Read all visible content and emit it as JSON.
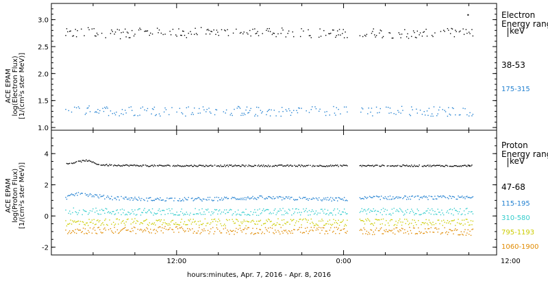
{
  "x_axis_label": "hours:minutes, Apr.  7, 2016 - Apr.  8, 2016",
  "panels": [
    {
      "ylabel_lines": [
        "ACE EPAM",
        "log(Electron Flux)",
        "[1/(cm²s ster MeV)]"
      ],
      "legend_title_lines": [
        "Electron",
        "Energy range"
      ],
      "legend_unit": "keV"
    },
    {
      "ylabel_lines": [
        "ACE EPAM",
        "log(Proton Flux)",
        "[1/(cm²s ster MeV)]"
      ],
      "legend_title_lines": [
        "Proton",
        "Energy range"
      ],
      "legend_unit": "keV"
    }
  ],
  "chart_data": [
    {
      "type": "scatter",
      "xlabel": "hours:minutes, Apr.  7, 2016 - Apr.  8, 2016",
      "ylabel": "log(Electron Flux)",
      "xlim_hours": [
        3,
        35
      ],
      "x_ticks": [
        "12:00",
        "0:00",
        "12:00"
      ],
      "x_tick_hours": [
        12,
        24,
        36
      ],
      "ylim": [
        0.95,
        3.3
      ],
      "y_ticks": [
        "1.0",
        "1.5",
        "2.0",
        "2.5",
        "3.0"
      ],
      "data_gap_hours": [
        24.3,
        25.1
      ],
      "series": [
        {
          "name": "38-53",
          "color": "#000000",
          "values": [
            {
              "x_hours": 4.0,
              "y": 2.75
            },
            {
              "x_hours": 6.0,
              "y": 2.78
            },
            {
              "x_hours": 8.0,
              "y": 2.74
            },
            {
              "x_hours": 10.0,
              "y": 2.77
            },
            {
              "x_hours": 12.0,
              "y": 2.75
            },
            {
              "x_hours": 14.0,
              "y": 2.78
            },
            {
              "x_hours": 16.0,
              "y": 2.76
            },
            {
              "x_hours": 18.0,
              "y": 2.75
            },
            {
              "x_hours": 20.0,
              "y": 2.77
            },
            {
              "x_hours": 22.0,
              "y": 2.76
            },
            {
              "x_hours": 24.0,
              "y": 2.74
            },
            {
              "x_hours": 26.0,
              "y": 2.76
            },
            {
              "x_hours": 28.0,
              "y": 2.75
            },
            {
              "x_hours": 30.0,
              "y": 2.74
            },
            {
              "x_hours": 32.0,
              "y": 2.76
            },
            {
              "x_hours": 33.0,
              "y": 2.75
            },
            {
              "x_hours": 32.9,
              "y": 3.1
            }
          ]
        },
        {
          "name": "175-315",
          "color": "#1f7fd0",
          "values": [
            {
              "x_hours": 4.0,
              "y": 1.3
            },
            {
              "x_hours": 6.0,
              "y": 1.33
            },
            {
              "x_hours": 8.0,
              "y": 1.31
            },
            {
              "x_hours": 10.0,
              "y": 1.32
            },
            {
              "x_hours": 12.0,
              "y": 1.3
            },
            {
              "x_hours": 14.0,
              "y": 1.31
            },
            {
              "x_hours": 16.0,
              "y": 1.32
            },
            {
              "x_hours": 18.0,
              "y": 1.3
            },
            {
              "x_hours": 20.0,
              "y": 1.31
            },
            {
              "x_hours": 22.0,
              "y": 1.32
            },
            {
              "x_hours": 24.0,
              "y": 1.31
            },
            {
              "x_hours": 26.0,
              "y": 1.3
            },
            {
              "x_hours": 28.0,
              "y": 1.32
            },
            {
              "x_hours": 30.0,
              "y": 1.31
            },
            {
              "x_hours": 32.0,
              "y": 1.3
            },
            {
              "x_hours": 33.0,
              "y": 1.31
            }
          ]
        }
      ]
    },
    {
      "type": "scatter",
      "xlabel": "hours:minutes, Apr.  7, 2016 - Apr.  8, 2016",
      "ylabel": "log(Proton Flux)",
      "xlim_hours": [
        3,
        35
      ],
      "x_ticks": [
        "12:00",
        "0:00",
        "12:00"
      ],
      "x_tick_hours": [
        12,
        24,
        36
      ],
      "ylim": [
        -2.5,
        5.5
      ],
      "y_ticks": [
        "-2",
        "0",
        "2",
        "4"
      ],
      "data_gap_hours": [
        24.3,
        25.1
      ],
      "series": [
        {
          "name": "47-68",
          "color": "#000000",
          "values": [
            {
              "x_hours": 4.0,
              "y": 3.35
            },
            {
              "x_hours": 5.5,
              "y": 3.6
            },
            {
              "x_hours": 6.5,
              "y": 3.3
            },
            {
              "x_hours": 10.0,
              "y": 3.25
            },
            {
              "x_hours": 14.0,
              "y": 3.25
            },
            {
              "x_hours": 18.0,
              "y": 3.25
            },
            {
              "x_hours": 22.0,
              "y": 3.25
            },
            {
              "x_hours": 24.0,
              "y": 3.25
            },
            {
              "x_hours": 26.0,
              "y": 3.25
            },
            {
              "x_hours": 30.0,
              "y": 3.25
            },
            {
              "x_hours": 33.0,
              "y": 3.25
            }
          ]
        },
        {
          "name": "115-195",
          "color": "#1f7fd0",
          "values": [
            {
              "x_hours": 4.0,
              "y": 1.2
            },
            {
              "x_hours": 5.0,
              "y": 1.5
            },
            {
              "x_hours": 7.0,
              "y": 1.2
            },
            {
              "x_hours": 10.0,
              "y": 1.1
            },
            {
              "x_hours": 14.0,
              "y": 1.1
            },
            {
              "x_hours": 18.0,
              "y": 1.2
            },
            {
              "x_hours": 22.0,
              "y": 1.1
            },
            {
              "x_hours": 24.0,
              "y": 1.1
            },
            {
              "x_hours": 26.0,
              "y": 1.2
            },
            {
              "x_hours": 30.0,
              "y": 1.2
            },
            {
              "x_hours": 33.0,
              "y": 1.2
            }
          ]
        },
        {
          "name": "310-580",
          "color": "#33cccc",
          "values": [
            {
              "x_hours": 4.0,
              "y": 0.35
            },
            {
              "x_hours": 8.0,
              "y": 0.3
            },
            {
              "x_hours": 12.0,
              "y": 0.3
            },
            {
              "x_hours": 16.0,
              "y": 0.25
            },
            {
              "x_hours": 20.0,
              "y": 0.3
            },
            {
              "x_hours": 24.0,
              "y": 0.3
            },
            {
              "x_hours": 26.0,
              "y": 0.3
            },
            {
              "x_hours": 30.0,
              "y": 0.3
            },
            {
              "x_hours": 33.0,
              "y": 0.3
            }
          ]
        },
        {
          "name": "795-1193",
          "color": "#cccc00",
          "values": [
            {
              "x_hours": 4.0,
              "y": -0.4
            },
            {
              "x_hours": 8.0,
              "y": -0.35
            },
            {
              "x_hours": 12.0,
              "y": -0.35
            },
            {
              "x_hours": 16.0,
              "y": -0.4
            },
            {
              "x_hours": 20.0,
              "y": -0.35
            },
            {
              "x_hours": 24.0,
              "y": -0.4
            },
            {
              "x_hours": 26.0,
              "y": -0.35
            },
            {
              "x_hours": 30.0,
              "y": -0.4
            },
            {
              "x_hours": 33.0,
              "y": -0.35
            }
          ]
        },
        {
          "name": "1060-1900",
          "color": "#e08a00",
          "values": [
            {
              "x_hours": 4.0,
              "y": -0.9
            },
            {
              "x_hours": 8.0,
              "y": -0.9
            },
            {
              "x_hours": 12.0,
              "y": -0.85
            },
            {
              "x_hours": 16.0,
              "y": -0.95
            },
            {
              "x_hours": 20.0,
              "y": -0.9
            },
            {
              "x_hours": 24.0,
              "y": -0.9
            },
            {
              "x_hours": 26.0,
              "y": -0.95
            },
            {
              "x_hours": 30.0,
              "y": -0.9
            },
            {
              "x_hours": 33.0,
              "y": -1.0
            }
          ]
        }
      ]
    }
  ]
}
